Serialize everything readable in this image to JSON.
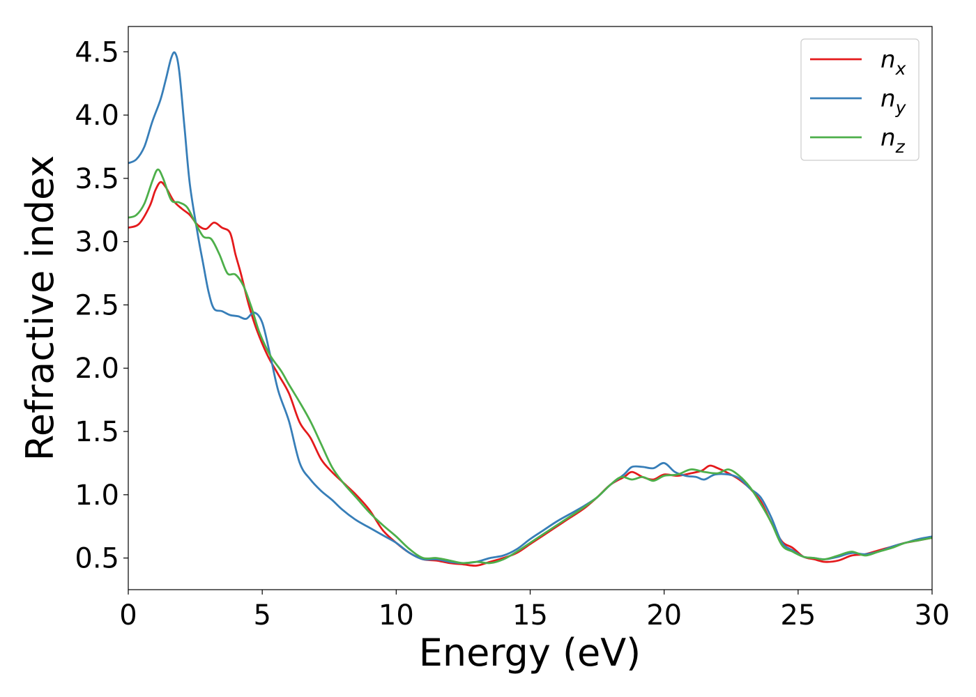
{
  "chart_data": {
    "type": "line",
    "title": "",
    "xlabel": "Energy (eV)",
    "ylabel": "Refractive index",
    "xlim": [
      0,
      30
    ],
    "ylim": [
      0.25,
      4.7
    ],
    "xticks": [
      0,
      5,
      10,
      15,
      20,
      25,
      30
    ],
    "yticks": [
      0.5,
      1.0,
      1.5,
      2.0,
      2.5,
      3.0,
      3.5,
      4.0,
      4.5
    ],
    "xtick_labels": [
      "0",
      "5",
      "10",
      "15",
      "20",
      "25",
      "30"
    ],
    "ytick_labels": [
      "0.5",
      "1.0",
      "1.5",
      "2.0",
      "2.5",
      "3.0",
      "3.5",
      "4.0",
      "4.5"
    ],
    "grid": false,
    "legend_position": "top-right",
    "series": [
      {
        "name": "n",
        "subscript": "x",
        "color": "#e41a1c",
        "points": [
          [
            0,
            3.11
          ],
          [
            0.4,
            3.14
          ],
          [
            0.8,
            3.28
          ],
          [
            1.0,
            3.4
          ],
          [
            1.2,
            3.47
          ],
          [
            1.4,
            3.43
          ],
          [
            1.7,
            3.32
          ],
          [
            2.0,
            3.26
          ],
          [
            2.3,
            3.21
          ],
          [
            2.6,
            3.13
          ],
          [
            2.9,
            3.1
          ],
          [
            3.2,
            3.15
          ],
          [
            3.5,
            3.11
          ],
          [
            3.8,
            3.07
          ],
          [
            4.0,
            2.9
          ],
          [
            4.2,
            2.75
          ],
          [
            4.5,
            2.5
          ],
          [
            4.8,
            2.3
          ],
          [
            5.2,
            2.1
          ],
          [
            5.6,
            1.95
          ],
          [
            6.0,
            1.8
          ],
          [
            6.4,
            1.57
          ],
          [
            6.8,
            1.45
          ],
          [
            7.2,
            1.28
          ],
          [
            7.6,
            1.18
          ],
          [
            8.0,
            1.1
          ],
          [
            8.5,
            1.0
          ],
          [
            9.0,
            0.88
          ],
          [
            9.5,
            0.72
          ],
          [
            10.0,
            0.62
          ],
          [
            10.5,
            0.54
          ],
          [
            11.0,
            0.49
          ],
          [
            11.5,
            0.48
          ],
          [
            12.0,
            0.46
          ],
          [
            12.5,
            0.45
          ],
          [
            13.0,
            0.44
          ],
          [
            13.5,
            0.47
          ],
          [
            14.0,
            0.5
          ],
          [
            14.5,
            0.54
          ],
          [
            15.0,
            0.61
          ],
          [
            15.5,
            0.68
          ],
          [
            16.0,
            0.75
          ],
          [
            16.5,
            0.82
          ],
          [
            17.0,
            0.89
          ],
          [
            17.5,
            0.98
          ],
          [
            18.0,
            1.08
          ],
          [
            18.5,
            1.14
          ],
          [
            18.8,
            1.18
          ],
          [
            19.2,
            1.14
          ],
          [
            19.6,
            1.12
          ],
          [
            20.0,
            1.16
          ],
          [
            20.5,
            1.15
          ],
          [
            21.0,
            1.17
          ],
          [
            21.4,
            1.19
          ],
          [
            21.7,
            1.23
          ],
          [
            22.0,
            1.21
          ],
          [
            22.4,
            1.17
          ],
          [
            22.8,
            1.12
          ],
          [
            23.2,
            1.05
          ],
          [
            23.6,
            0.95
          ],
          [
            24.0,
            0.78
          ],
          [
            24.4,
            0.63
          ],
          [
            24.8,
            0.58
          ],
          [
            25.2,
            0.51
          ],
          [
            25.6,
            0.49
          ],
          [
            26.0,
            0.47
          ],
          [
            26.5,
            0.48
          ],
          [
            27.0,
            0.52
          ],
          [
            27.5,
            0.53
          ],
          [
            28.0,
            0.56
          ],
          [
            28.5,
            0.59
          ],
          [
            29.0,
            0.62
          ],
          [
            29.5,
            0.64
          ],
          [
            30.0,
            0.66
          ]
        ]
      },
      {
        "name": "n",
        "subscript": "y",
        "color": "#377eb8",
        "points": [
          [
            0,
            3.62
          ],
          [
            0.3,
            3.65
          ],
          [
            0.6,
            3.75
          ],
          [
            0.9,
            3.95
          ],
          [
            1.2,
            4.12
          ],
          [
            1.4,
            4.28
          ],
          [
            1.6,
            4.45
          ],
          [
            1.75,
            4.49
          ],
          [
            1.9,
            4.35
          ],
          [
            2.1,
            3.9
          ],
          [
            2.3,
            3.45
          ],
          [
            2.6,
            3.05
          ],
          [
            2.8,
            2.82
          ],
          [
            3.0,
            2.6
          ],
          [
            3.2,
            2.47
          ],
          [
            3.5,
            2.45
          ],
          [
            3.8,
            2.42
          ],
          [
            4.1,
            2.41
          ],
          [
            4.4,
            2.39
          ],
          [
            4.7,
            2.44
          ],
          [
            5.0,
            2.36
          ],
          [
            5.3,
            2.1
          ],
          [
            5.6,
            1.82
          ],
          [
            6.0,
            1.58
          ],
          [
            6.4,
            1.25
          ],
          [
            6.8,
            1.12
          ],
          [
            7.2,
            1.03
          ],
          [
            7.6,
            0.96
          ],
          [
            8.0,
            0.88
          ],
          [
            8.5,
            0.8
          ],
          [
            9.0,
            0.74
          ],
          [
            9.5,
            0.68
          ],
          [
            10.0,
            0.62
          ],
          [
            10.5,
            0.54
          ],
          [
            11.0,
            0.49
          ],
          [
            11.5,
            0.49
          ],
          [
            12.0,
            0.47
          ],
          [
            12.5,
            0.46
          ],
          [
            13.0,
            0.47
          ],
          [
            13.5,
            0.5
          ],
          [
            14.0,
            0.52
          ],
          [
            14.5,
            0.57
          ],
          [
            15.0,
            0.65
          ],
          [
            15.5,
            0.72
          ],
          [
            16.0,
            0.79
          ],
          [
            16.5,
            0.85
          ],
          [
            17.0,
            0.91
          ],
          [
            17.5,
            0.98
          ],
          [
            18.0,
            1.08
          ],
          [
            18.5,
            1.16
          ],
          [
            18.8,
            1.22
          ],
          [
            19.2,
            1.22
          ],
          [
            19.6,
            1.21
          ],
          [
            20.0,
            1.25
          ],
          [
            20.4,
            1.18
          ],
          [
            20.8,
            1.15
          ],
          [
            21.2,
            1.14
          ],
          [
            21.5,
            1.12
          ],
          [
            21.9,
            1.16
          ],
          [
            22.4,
            1.16
          ],
          [
            22.8,
            1.13
          ],
          [
            23.2,
            1.05
          ],
          [
            23.6,
            0.98
          ],
          [
            24.0,
            0.82
          ],
          [
            24.4,
            0.62
          ],
          [
            24.8,
            0.56
          ],
          [
            25.2,
            0.51
          ],
          [
            25.6,
            0.5
          ],
          [
            26.0,
            0.49
          ],
          [
            26.5,
            0.51
          ],
          [
            27.0,
            0.54
          ],
          [
            27.5,
            0.53
          ],
          [
            28.0,
            0.55
          ],
          [
            28.5,
            0.59
          ],
          [
            29.0,
            0.62
          ],
          [
            29.5,
            0.65
          ],
          [
            30.0,
            0.67
          ]
        ]
      },
      {
        "name": "n",
        "subscript": "z",
        "color": "#4daf4a",
        "points": [
          [
            0,
            3.19
          ],
          [
            0.3,
            3.21
          ],
          [
            0.6,
            3.3
          ],
          [
            0.9,
            3.48
          ],
          [
            1.1,
            3.57
          ],
          [
            1.3,
            3.5
          ],
          [
            1.6,
            3.33
          ],
          [
            1.9,
            3.31
          ],
          [
            2.2,
            3.27
          ],
          [
            2.5,
            3.15
          ],
          [
            2.8,
            3.04
          ],
          [
            3.1,
            3.02
          ],
          [
            3.4,
            2.9
          ],
          [
            3.7,
            2.75
          ],
          [
            4.0,
            2.74
          ],
          [
            4.3,
            2.65
          ],
          [
            4.6,
            2.48
          ],
          [
            4.9,
            2.28
          ],
          [
            5.3,
            2.1
          ],
          [
            5.7,
            1.98
          ],
          [
            6.0,
            1.87
          ],
          [
            6.4,
            1.73
          ],
          [
            6.8,
            1.58
          ],
          [
            7.2,
            1.4
          ],
          [
            7.6,
            1.22
          ],
          [
            8.0,
            1.1
          ],
          [
            8.5,
            0.98
          ],
          [
            9.0,
            0.86
          ],
          [
            9.5,
            0.76
          ],
          [
            10.0,
            0.67
          ],
          [
            10.5,
            0.57
          ],
          [
            11.0,
            0.5
          ],
          [
            11.5,
            0.5
          ],
          [
            12.0,
            0.48
          ],
          [
            12.5,
            0.46
          ],
          [
            13.0,
            0.47
          ],
          [
            13.5,
            0.46
          ],
          [
            14.0,
            0.49
          ],
          [
            14.5,
            0.55
          ],
          [
            15.0,
            0.62
          ],
          [
            15.5,
            0.69
          ],
          [
            16.0,
            0.76
          ],
          [
            16.5,
            0.83
          ],
          [
            17.0,
            0.9
          ],
          [
            17.5,
            0.98
          ],
          [
            18.0,
            1.08
          ],
          [
            18.4,
            1.14
          ],
          [
            18.8,
            1.12
          ],
          [
            19.2,
            1.14
          ],
          [
            19.6,
            1.11
          ],
          [
            20.0,
            1.15
          ],
          [
            20.5,
            1.16
          ],
          [
            21.0,
            1.2
          ],
          [
            21.5,
            1.18
          ],
          [
            22.0,
            1.17
          ],
          [
            22.4,
            1.2
          ],
          [
            22.8,
            1.15
          ],
          [
            23.2,
            1.06
          ],
          [
            23.6,
            0.93
          ],
          [
            24.0,
            0.78
          ],
          [
            24.4,
            0.6
          ],
          [
            24.8,
            0.55
          ],
          [
            25.2,
            0.51
          ],
          [
            25.6,
            0.5
          ],
          [
            26.0,
            0.49
          ],
          [
            26.5,
            0.52
          ],
          [
            27.0,
            0.55
          ],
          [
            27.5,
            0.52
          ],
          [
            28.0,
            0.55
          ],
          [
            28.5,
            0.58
          ],
          [
            29.0,
            0.62
          ],
          [
            29.5,
            0.64
          ],
          [
            30.0,
            0.66
          ]
        ]
      }
    ]
  }
}
